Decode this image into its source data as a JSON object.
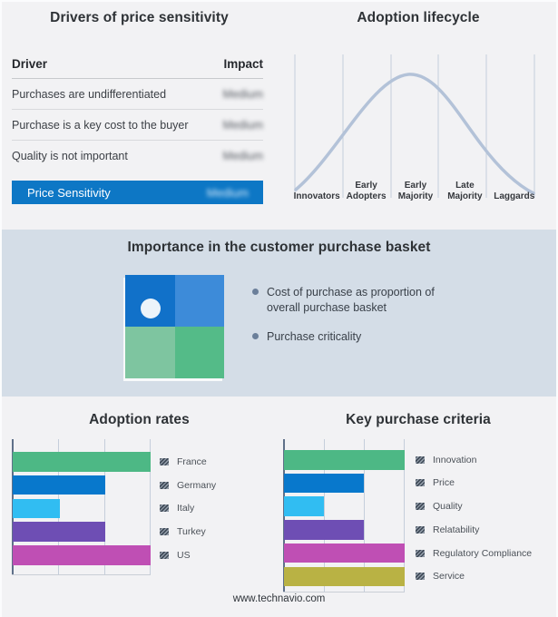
{
  "page": {
    "background": "#f2f2f4",
    "band_background": "#d4dde7",
    "accent_blue": "#0d77c5",
    "footer": "www.technavio.com"
  },
  "drivers_panel": {
    "title": "Drivers of price sensitivity",
    "columns": {
      "driver": "Driver",
      "impact": "Impact"
    },
    "rows": [
      {
        "driver": "Purchases are undifferentiated",
        "impact": "Medium"
      },
      {
        "driver": "Purchase is a key cost to the buyer",
        "impact": "Medium"
      },
      {
        "driver": "Quality is not important",
        "impact": "Medium"
      }
    ],
    "highlight": {
      "driver": "Price Sensitivity",
      "impact": "Medium",
      "bg": "#0d77c5"
    },
    "impact_values_blurred": true
  },
  "lifecycle_panel": {
    "title": "Adoption lifecycle",
    "stages": [
      "Innovators",
      "Early Adopters",
      "Early Majority",
      "Late Majority",
      "Laggards"
    ],
    "curve_color": "#b3c2d8",
    "gridline_color": "#c4cedb"
  },
  "basket_panel": {
    "title": "Importance in the customer purchase basket",
    "bullets": [
      "Cost of purchase as proportion of overall purchase basket",
      "Purchase criticality"
    ],
    "quadrant": {
      "top_left": "#1171c9",
      "top_right": "#3d8bd9",
      "bottom_left": "#7ec5a0",
      "bottom_right": "#54bb88",
      "marker": "white circle in top-left quadrant"
    }
  },
  "chart_data": [
    {
      "type": "table",
      "title": "Drivers of price sensitivity",
      "columns": [
        "Driver",
        "Impact"
      ],
      "rows": [
        [
          "Purchases are undifferentiated",
          "Medium"
        ],
        [
          "Purchase is a key cost to the buyer",
          "Medium"
        ],
        [
          "Quality is not important",
          "Medium"
        ],
        [
          "Price Sensitivity",
          "Medium"
        ]
      ],
      "note": "impact values are blurred in the source image"
    },
    {
      "type": "line",
      "title": "Adoption lifecycle",
      "categories": [
        "Innovators",
        "Early Adopters",
        "Early Majority",
        "Late Majority",
        "Laggards"
      ],
      "shape": "bell curve peaking near Early Majority",
      "relative_heights": [
        5,
        45,
        95,
        55,
        8
      ],
      "grid": true
    },
    {
      "type": "bar",
      "orientation": "horizontal",
      "title": "Adoption rates",
      "categories": [
        "France",
        "Germany",
        "Italy",
        "Turkey",
        "US"
      ],
      "values": [
        100,
        67,
        34,
        67,
        100
      ],
      "colors": [
        "#4db885",
        "#0878cc",
        "#31bdf2",
        "#6e4eb4",
        "#bf4fb4"
      ],
      "xlim": [
        0,
        100
      ],
      "grid": true,
      "legend_position": "right"
    },
    {
      "type": "bar",
      "orientation": "horizontal",
      "title": "Key purchase criteria",
      "categories": [
        "Innovation",
        "Price",
        "Quality",
        "Relatability",
        "Regulatory Compliance",
        "Service"
      ],
      "values": [
        100,
        66,
        33,
        66,
        100,
        100
      ],
      "colors": [
        "#4db885",
        "#0878cc",
        "#31bdf2",
        "#6e4eb4",
        "#bf4fb4",
        "#b9b244"
      ],
      "xlim": [
        0,
        100
      ],
      "grid": true,
      "legend_position": "right"
    }
  ]
}
